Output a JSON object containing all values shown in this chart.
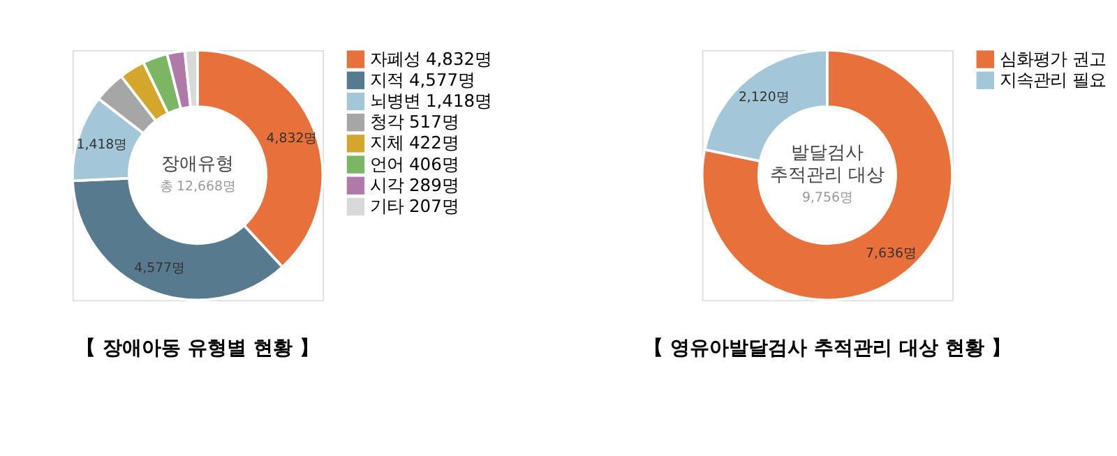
{
  "chart_data": [
    {
      "type": "donut",
      "title": "【 장애아동 유형별 현황 】",
      "categories": [
        "자폐성 4,832명",
        "지적 4,577명",
        "뇌병변 1,418명",
        "청각 517명",
        "지체 422명",
        "언어 406명",
        "시각 289명",
        "기타 207명"
      ],
      "values": [
        4832,
        4577,
        1418,
        517,
        422,
        406,
        289,
        207
      ],
      "colors": [
        "#e8703a",
        "#587a8e",
        "#a3c7d8",
        "#a6a6a6",
        "#d4a72c",
        "#7bb662",
        "#b07aa8",
        "#d9d9d9"
      ],
      "value_labels": [
        "4,832명",
        "4,577명",
        "1,418명",
        null,
        null,
        null,
        null,
        null
      ],
      "annotations": [
        "장애유형",
        "총 12,668명"
      ],
      "legend": "right"
    },
    {
      "type": "donut",
      "title": "【 영유아발달검사 추적관리 대상 현황 】",
      "categories": [
        "심화평가 권고",
        "지속관리 필요"
      ],
      "values": [
        7636,
        2120
      ],
      "colors": [
        "#e8703a",
        "#a3c7d8"
      ],
      "value_labels": [
        "7,636명",
        "2,120명"
      ],
      "annotations": [
        "발달검사",
        "추적관리 대상",
        "9,756명"
      ],
      "legend": "right"
    }
  ]
}
